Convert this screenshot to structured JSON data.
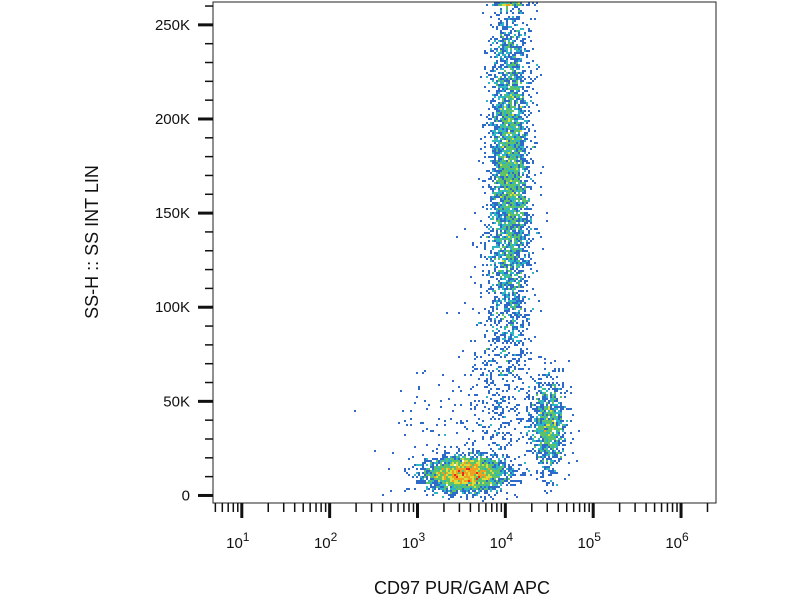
{
  "chart_data": {
    "type": "scatter",
    "style": "flow-cytometry density dot plot (pseudocolor)",
    "xlabel": "CD97 PUR/GAM APC",
    "ylabel": "SS-H :: SS INT LIN",
    "x_scale": "log",
    "y_scale": "linear",
    "xlim": [
      4.7,
      2500000
    ],
    "ylim": [
      -4000,
      262144
    ],
    "x_ticks": [
      {
        "value": 10,
        "base": "10",
        "exp": "1"
      },
      {
        "value": 100,
        "base": "10",
        "exp": "2"
      },
      {
        "value": 1000,
        "base": "10",
        "exp": "3"
      },
      {
        "value": 10000,
        "base": "10",
        "exp": "4"
      },
      {
        "value": 100000,
        "base": "10",
        "exp": "5"
      },
      {
        "value": 1000000,
        "base": "10",
        "exp": "6"
      }
    ],
    "y_ticks": [
      {
        "value": 0,
        "label": "0"
      },
      {
        "value": 50000,
        "label": "50K"
      },
      {
        "value": 100000,
        "label": "100K"
      },
      {
        "value": 150000,
        "label": "150K"
      },
      {
        "value": 200000,
        "label": "200K"
      },
      {
        "value": 250000,
        "label": "250K"
      }
    ],
    "density_colors": [
      "#1a2a8c",
      "#2e6bc9",
      "#2fb6c4",
      "#5cc26a",
      "#d8de3a",
      "#f0a020",
      "#e8281e"
    ],
    "populations": [
      {
        "x_center": 3500,
        "y_center": 12000,
        "x_spread_decades": 0.22,
        "y_spread": 4500,
        "weight": 0.34
      },
      {
        "x_center": 11000,
        "y_center": 175000,
        "x_spread_decades": 0.11,
        "y_spread": 45000,
        "weight": 0.46
      },
      {
        "x_center": 30000,
        "y_center": 38000,
        "x_spread_decades": 0.1,
        "y_spread": 12000,
        "weight": 0.12
      },
      {
        "x_center": 9000,
        "y_center": 85000,
        "x_spread_decades": 0.18,
        "y_spread": 40000,
        "weight": 0.06
      },
      {
        "x_center": 3000,
        "y_center": 30000,
        "x_spread_decades": 0.45,
        "y_spread": 25000,
        "weight": 0.02
      }
    ],
    "grid": false,
    "legend": "none"
  }
}
